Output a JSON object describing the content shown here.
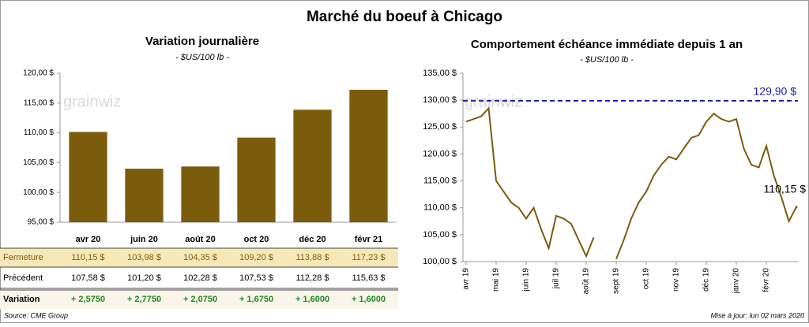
{
  "title": "Marché du boeuf à Chicago",
  "source": "Source: CME Group",
  "updated": "Mise à jour: lun 02 mars 2020",
  "watermark": "grainwiz",
  "chart_data": [
    {
      "type": "bar",
      "title": "Variation journalière",
      "subtitle": "- $US/100 lb -",
      "categories": [
        "avr 20",
        "juin 20",
        "août 20",
        "oct 20",
        "déc 20",
        "févr 21"
      ],
      "values": [
        110.15,
        103.98,
        104.35,
        109.2,
        113.88,
        117.23
      ],
      "value_labels": [
        "110,15 $",
        "103,98 $",
        "104,35 $",
        "109,20 $",
        "113,88 $",
        "117,23 $"
      ],
      "value_label_name": "Fermeture",
      "color": "#7a5c0c",
      "ylim": [
        95,
        120
      ],
      "yticks": [
        {
          "value": 95,
          "label": "95,00 $"
        },
        {
          "value": 100,
          "label": "100,00 $"
        },
        {
          "value": 105,
          "label": "105,00 $"
        },
        {
          "value": 110,
          "label": "110,00 $"
        },
        {
          "value": 115,
          "label": "115,00 $"
        },
        {
          "value": 120,
          "label": "120,00 $"
        }
      ],
      "table": [
        {
          "label": "Précédent",
          "cells": [
            "107,58 $",
            "101,20 $",
            "102,28 $",
            "107,53 $",
            "112,28 $",
            "115,63 $"
          ]
        },
        {
          "label": "Variation",
          "cells": [
            "+ 2,5750",
            "+ 2,7750",
            "+ 2,0750",
            "+ 1,6750",
            "+ 1,6000",
            "+ 1,6000"
          ]
        }
      ]
    },
    {
      "type": "line",
      "title": "Comportement  échéance immédiate depuis 1 an",
      "subtitle": "- $US/100 lb -",
      "categories": [
        "avr 19",
        null,
        null,
        null,
        "mai 19",
        null,
        null,
        null,
        "juin 19",
        null,
        null,
        null,
        "juil 19",
        null,
        null,
        null,
        "août 19",
        null,
        null,
        null,
        "sept 19",
        null,
        null,
        null,
        "oct 19",
        null,
        null,
        null,
        "nov 19",
        null,
        null,
        null,
        "déc 19",
        null,
        null,
        null,
        "janv 20",
        null,
        null,
        null,
        "févr 20",
        null,
        null,
        null,
        null
      ],
      "values": [
        126,
        126.5,
        127,
        128.5,
        115,
        113,
        111,
        110,
        108,
        110,
        106,
        102.5,
        108.5,
        108,
        107,
        104,
        101,
        104.5,
        null,
        null,
        100.5,
        104,
        108,
        111,
        113,
        116,
        118,
        119.5,
        119,
        121,
        123,
        123.5,
        126,
        127.5,
        126.5,
        126,
        126.5,
        121,
        118,
        117.5,
        121.5,
        116,
        112,
        107.5,
        110.15
      ],
      "color": "#7a5c0c",
      "ylim": [
        100,
        135
      ],
      "yticks": [
        {
          "value": 100,
          "label": "100,00 $"
        },
        {
          "value": 105,
          "label": "105,00 $"
        },
        {
          "value": 110,
          "label": "110,00 $"
        },
        {
          "value": 115,
          "label": "115,00 $"
        },
        {
          "value": 120,
          "label": "120,00 $"
        },
        {
          "value": 125,
          "label": "125,00 $"
        },
        {
          "value": 130,
          "label": "130,00 $"
        },
        {
          "value": 135,
          "label": "135,00 $"
        }
      ],
      "reference": {
        "value": 129.9,
        "label": "129,90 $",
        "color": "#1c1ca8"
      },
      "annotation": {
        "value": 110.15,
        "label": "110,15 $"
      }
    }
  ]
}
